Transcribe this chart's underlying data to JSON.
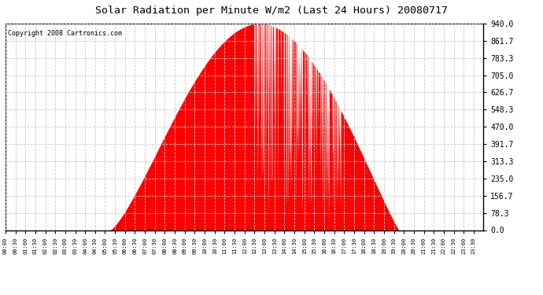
{
  "title": "Solar Radiation per Minute W/m2 (Last 24 Hours) 20080717",
  "copyright": "Copyright 2008 Cartronics.com",
  "bg_color": "#ffffff",
  "fill_color": "#ff0000",
  "grid_color": "#c8c8c8",
  "ylim": [
    0,
    940
  ],
  "yticks": [
    0.0,
    78.3,
    156.7,
    235.0,
    313.3,
    391.7,
    470.0,
    548.3,
    626.7,
    705.0,
    783.3,
    861.7,
    940.0
  ],
  "sunrise_min": 315,
  "peak_min": 765,
  "sunset_min": 1185,
  "peak_val": 940,
  "n_points": 1440
}
